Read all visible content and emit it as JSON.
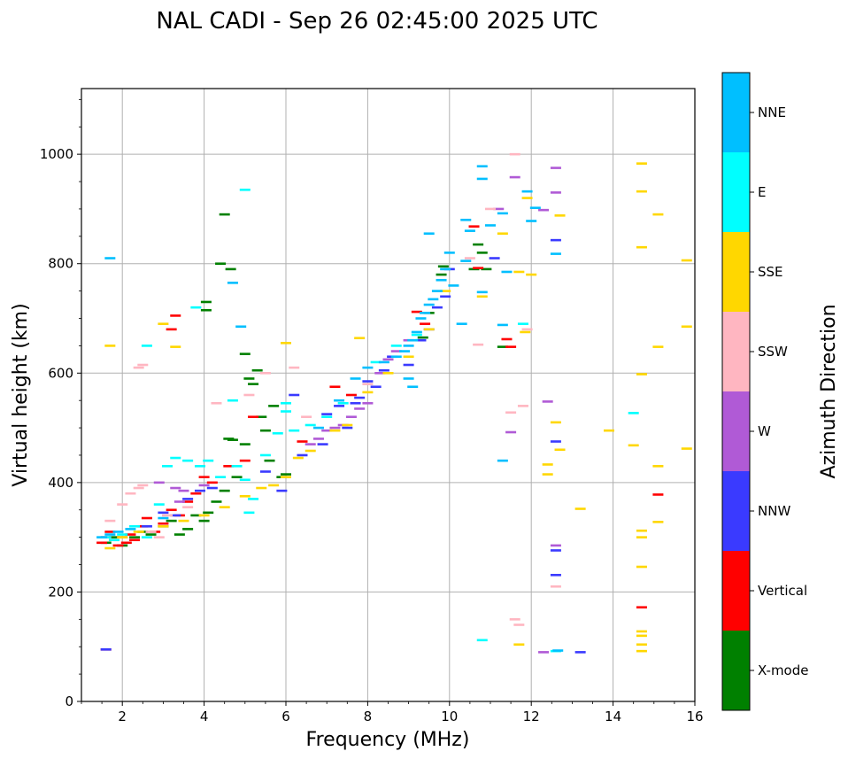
{
  "chart_data": {
    "type": "scatter",
    "title": "NAL CADI - Sep 26 02:45:00 2025 UTC",
    "xlabel": "Frequency (MHz)",
    "ylabel": "Virtual height (km)",
    "xlim": [
      1,
      16
    ],
    "ylim": [
      0,
      1120
    ],
    "xticks": [
      2,
      4,
      6,
      8,
      10,
      12,
      14,
      16
    ],
    "yticks": [
      0,
      200,
      400,
      600,
      800,
      1000
    ],
    "grid": true,
    "colorbar": {
      "title": "Azimuth Direction",
      "categories": [
        {
          "name": "X-mode",
          "color": "#008000"
        },
        {
          "name": "Vertical",
          "color": "#ff0000"
        },
        {
          "name": "NNW",
          "color": "#3a3aff"
        },
        {
          "name": "W",
          "color": "#b05ad6"
        },
        {
          "name": "SSW",
          "color": "#ffb6c1"
        },
        {
          "name": "SSE",
          "color": "#ffd700"
        },
        {
          "name": "E",
          "color": "#00ffff"
        },
        {
          "name": "NNE",
          "color": "#00bfff"
        }
      ]
    },
    "series": [
      {
        "name": "X-mode",
        "points": [
          [
            1.6,
            290
          ],
          [
            1.8,
            300
          ],
          [
            2.0,
            285
          ],
          [
            2.3,
            300
          ],
          [
            2.5,
            310
          ],
          [
            2.7,
            305
          ],
          [
            3.0,
            320
          ],
          [
            3.2,
            330
          ],
          [
            3.4,
            305
          ],
          [
            3.6,
            315
          ],
          [
            3.8,
            340
          ],
          [
            4.0,
            330
          ],
          [
            4.1,
            345
          ],
          [
            4.3,
            365
          ],
          [
            4.5,
            385
          ],
          [
            4.6,
            480
          ],
          [
            4.7,
            478
          ],
          [
            4.8,
            410
          ],
          [
            5.0,
            470
          ],
          [
            5.1,
            590
          ],
          [
            5.2,
            580
          ],
          [
            5.4,
            520
          ],
          [
            5.5,
            495
          ],
          [
            5.7,
            540
          ],
          [
            5.9,
            410
          ],
          [
            6.0,
            415
          ],
          [
            4.05,
            730
          ],
          [
            4.05,
            715
          ],
          [
            4.4,
            800
          ],
          [
            4.65,
            790
          ],
          [
            4.5,
            890
          ],
          [
            5.0,
            635
          ],
          [
            5.3,
            605
          ],
          [
            5.6,
            440
          ],
          [
            9.35,
            665
          ],
          [
            9.5,
            710
          ],
          [
            9.8,
            780
          ],
          [
            9.85,
            795
          ],
          [
            10.7,
            835
          ],
          [
            10.8,
            820
          ],
          [
            10.9,
            790
          ],
          [
            11.3,
            648
          ],
          [
            10.6,
            790
          ]
        ]
      },
      {
        "name": "Vertical",
        "points": [
          [
            1.5,
            290
          ],
          [
            1.6,
            300
          ],
          [
            1.7,
            310
          ],
          [
            1.8,
            295
          ],
          [
            1.9,
            285
          ],
          [
            2.0,
            300
          ],
          [
            2.1,
            290
          ],
          [
            2.2,
            305
          ],
          [
            2.3,
            295
          ],
          [
            2.5,
            320
          ],
          [
            2.6,
            335
          ],
          [
            2.8,
            310
          ],
          [
            3.0,
            325
          ],
          [
            3.2,
            350
          ],
          [
            3.4,
            340
          ],
          [
            3.6,
            365
          ],
          [
            3.8,
            380
          ],
          [
            4.0,
            410
          ],
          [
            4.2,
            400
          ],
          [
            4.6,
            430
          ],
          [
            5.0,
            440
          ],
          [
            5.2,
            520
          ],
          [
            6.4,
            475
          ],
          [
            7.2,
            575
          ],
          [
            7.6,
            560
          ],
          [
            9.2,
            712
          ],
          [
            9.4,
            690
          ],
          [
            10.6,
            868
          ],
          [
            10.7,
            792
          ],
          [
            11.4,
            662
          ],
          [
            11.5,
            648
          ],
          [
            14.7,
            172
          ],
          [
            15.1,
            378
          ],
          [
            3.3,
            705
          ],
          [
            3.2,
            680
          ],
          [
            1.6,
            95
          ]
        ]
      },
      {
        "name": "NNW",
        "points": [
          [
            2.6,
            320
          ],
          [
            3.0,
            345
          ],
          [
            3.3,
            340
          ],
          [
            3.6,
            370
          ],
          [
            3.9,
            385
          ],
          [
            4.2,
            390
          ],
          [
            5.5,
            420
          ],
          [
            5.9,
            385
          ],
          [
            6.4,
            450
          ],
          [
            6.9,
            470
          ],
          [
            7.0,
            525
          ],
          [
            7.3,
            540
          ],
          [
            7.5,
            500
          ],
          [
            7.7,
            545
          ],
          [
            7.8,
            555
          ],
          [
            8.0,
            585
          ],
          [
            8.2,
            575
          ],
          [
            8.4,
            605
          ],
          [
            8.6,
            630
          ],
          [
            9.0,
            615
          ],
          [
            9.3,
            660
          ],
          [
            9.5,
            680
          ],
          [
            9.7,
            720
          ],
          [
            9.9,
            740
          ],
          [
            10.0,
            790
          ],
          [
            11.1,
            810
          ],
          [
            12.6,
            843
          ],
          [
            12.6,
            475
          ],
          [
            12.6,
            276
          ],
          [
            12.6,
            231
          ],
          [
            13.2,
            90
          ],
          [
            6.2,
            560
          ],
          [
            1.6,
            95
          ]
        ]
      },
      {
        "name": "W",
        "points": [
          [
            2.9,
            400
          ],
          [
            3.3,
            390
          ],
          [
            3.5,
            385
          ],
          [
            4.0,
            395
          ],
          [
            6.6,
            470
          ],
          [
            6.8,
            480
          ],
          [
            7.0,
            495
          ],
          [
            7.2,
            500
          ],
          [
            7.4,
            505
          ],
          [
            7.6,
            520
          ],
          [
            7.8,
            535
          ],
          [
            8.0,
            545
          ],
          [
            8.3,
            600
          ],
          [
            8.5,
            625
          ],
          [
            8.7,
            640
          ],
          [
            9.0,
            660
          ],
          [
            11.2,
            900
          ],
          [
            11.6,
            958
          ],
          [
            12.3,
            898
          ],
          [
            12.6,
            930
          ],
          [
            12.6,
            975
          ],
          [
            12.4,
            548
          ],
          [
            11.5,
            492
          ],
          [
            12.6,
            285
          ],
          [
            12.3,
            90
          ],
          [
            3.4,
            365
          ]
        ]
      },
      {
        "name": "SSW",
        "points": [
          [
            1.7,
            330
          ],
          [
            2.0,
            360
          ],
          [
            2.2,
            380
          ],
          [
            2.4,
            390
          ],
          [
            2.5,
            395
          ],
          [
            2.7,
            310
          ],
          [
            2.9,
            300
          ],
          [
            3.1,
            340
          ],
          [
            3.6,
            355
          ],
          [
            4.3,
            545
          ],
          [
            5.1,
            560
          ],
          [
            5.5,
            600
          ],
          [
            6.2,
            610
          ],
          [
            6.5,
            520
          ],
          [
            8.0,
            580
          ],
          [
            10.5,
            810
          ],
          [
            10.7,
            652
          ],
          [
            11.0,
            900
          ],
          [
            11.8,
            540
          ],
          [
            11.9,
            680
          ],
          [
            11.5,
            528
          ],
          [
            11.7,
            140
          ],
          [
            11.6,
            150
          ],
          [
            12.6,
            210
          ],
          [
            2.4,
            610
          ],
          [
            2.5,
            615
          ],
          [
            11.6,
            1000
          ]
        ]
      },
      {
        "name": "SSE",
        "points": [
          [
            1.7,
            280
          ],
          [
            2.0,
            300
          ],
          [
            2.4,
            310
          ],
          [
            3.0,
            320
          ],
          [
            3.5,
            330
          ],
          [
            4.0,
            340
          ],
          [
            4.5,
            355
          ],
          [
            5.0,
            375
          ],
          [
            5.4,
            390
          ],
          [
            5.7,
            395
          ],
          [
            6.0,
            410
          ],
          [
            6.3,
            445
          ],
          [
            6.6,
            458
          ],
          [
            7.2,
            495
          ],
          [
            7.5,
            505
          ],
          [
            8.0,
            565
          ],
          [
            8.5,
            600
          ],
          [
            9.0,
            630
          ],
          [
            9.5,
            680
          ],
          [
            9.9,
            750
          ],
          [
            10.8,
            740
          ],
          [
            11.3,
            855
          ],
          [
            11.7,
            785
          ],
          [
            11.9,
            920
          ],
          [
            12.0,
            780
          ],
          [
            11.85,
            675
          ],
          [
            12.4,
            433
          ],
          [
            12.4,
            415
          ],
          [
            12.7,
            888
          ],
          [
            12.6,
            510
          ],
          [
            12.7,
            460
          ],
          [
            13.2,
            352
          ],
          [
            13.9,
            495
          ],
          [
            14.7,
            983
          ],
          [
            14.7,
            932
          ],
          [
            14.7,
            830
          ],
          [
            14.5,
            468
          ],
          [
            14.7,
            598
          ],
          [
            14.7,
            312
          ],
          [
            14.7,
            300
          ],
          [
            14.7,
            246
          ],
          [
            15.1,
            890
          ],
          [
            15.1,
            648
          ],
          [
            15.1,
            430
          ],
          [
            15.1,
            328
          ],
          [
            14.7,
            128
          ],
          [
            14.7,
            120
          ],
          [
            14.7,
            104
          ],
          [
            14.7,
            92
          ],
          [
            15.8,
            806
          ],
          [
            15.8,
            685
          ],
          [
            15.8,
            462
          ],
          [
            11.7,
            104
          ],
          [
            7.8,
            664
          ],
          [
            6.0,
            655
          ],
          [
            3.3,
            648
          ],
          [
            1.7,
            650
          ],
          [
            3.0,
            690
          ]
        ]
      },
      {
        "name": "E",
        "points": [
          [
            1.6,
            300
          ],
          [
            1.8,
            295
          ],
          [
            2.0,
            305
          ],
          [
            2.3,
            320
          ],
          [
            2.6,
            300
          ],
          [
            2.9,
            360
          ],
          [
            3.1,
            430
          ],
          [
            3.3,
            445
          ],
          [
            3.6,
            440
          ],
          [
            3.9,
            430
          ],
          [
            4.1,
            440
          ],
          [
            4.4,
            410
          ],
          [
            4.8,
            430
          ],
          [
            5.0,
            405
          ],
          [
            5.2,
            370
          ],
          [
            5.5,
            450
          ],
          [
            5.8,
            490
          ],
          [
            6.0,
            530
          ],
          [
            6.2,
            495
          ],
          [
            6.6,
            505
          ],
          [
            7.0,
            520
          ],
          [
            7.4,
            545
          ],
          [
            8.2,
            620
          ],
          [
            8.7,
            650
          ],
          [
            9.2,
            670
          ],
          [
            10.8,
            112
          ],
          [
            11.8,
            690
          ],
          [
            12.6,
            92
          ],
          [
            14.5,
            527
          ],
          [
            2.6,
            650
          ],
          [
            3.8,
            720
          ],
          [
            4.7,
            550
          ],
          [
            5.0,
            935
          ],
          [
            6.0,
            545
          ],
          [
            5.1,
            345
          ]
        ]
      },
      {
        "name": "NNE",
        "points": [
          [
            1.5,
            300
          ],
          [
            1.7,
            305
          ],
          [
            1.9,
            310
          ],
          [
            2.2,
            315
          ],
          [
            3.0,
            335
          ],
          [
            4.9,
            685
          ],
          [
            4.7,
            765
          ],
          [
            6.8,
            500
          ],
          [
            7.3,
            550
          ],
          [
            7.7,
            590
          ],
          [
            8.0,
            610
          ],
          [
            8.4,
            620
          ],
          [
            8.7,
            630
          ],
          [
            8.9,
            640
          ],
          [
            9.0,
            650
          ],
          [
            9.1,
            660
          ],
          [
            9.2,
            675
          ],
          [
            9.3,
            700
          ],
          [
            9.4,
            710
          ],
          [
            9.5,
            725
          ],
          [
            9.6,
            735
          ],
          [
            9.7,
            750
          ],
          [
            9.8,
            770
          ],
          [
            9.9,
            790
          ],
          [
            10.0,
            820
          ],
          [
            10.4,
            880
          ],
          [
            10.5,
            860
          ],
          [
            10.8,
            978
          ],
          [
            10.8,
            955
          ],
          [
            11.0,
            870
          ],
          [
            11.3,
            892
          ],
          [
            11.4,
            785
          ],
          [
            11.9,
            932
          ],
          [
            12.0,
            878
          ],
          [
            12.1,
            902
          ],
          [
            11.3,
            688
          ],
          [
            11.3,
            440
          ],
          [
            12.6,
            818
          ],
          [
            12.65,
            93
          ],
          [
            10.4,
            805
          ],
          [
            10.8,
            748
          ],
          [
            9.0,
            590
          ],
          [
            9.1,
            575
          ],
          [
            9.5,
            855
          ],
          [
            10.3,
            690
          ],
          [
            10.1,
            760
          ],
          [
            1.7,
            810
          ]
        ]
      }
    ]
  }
}
